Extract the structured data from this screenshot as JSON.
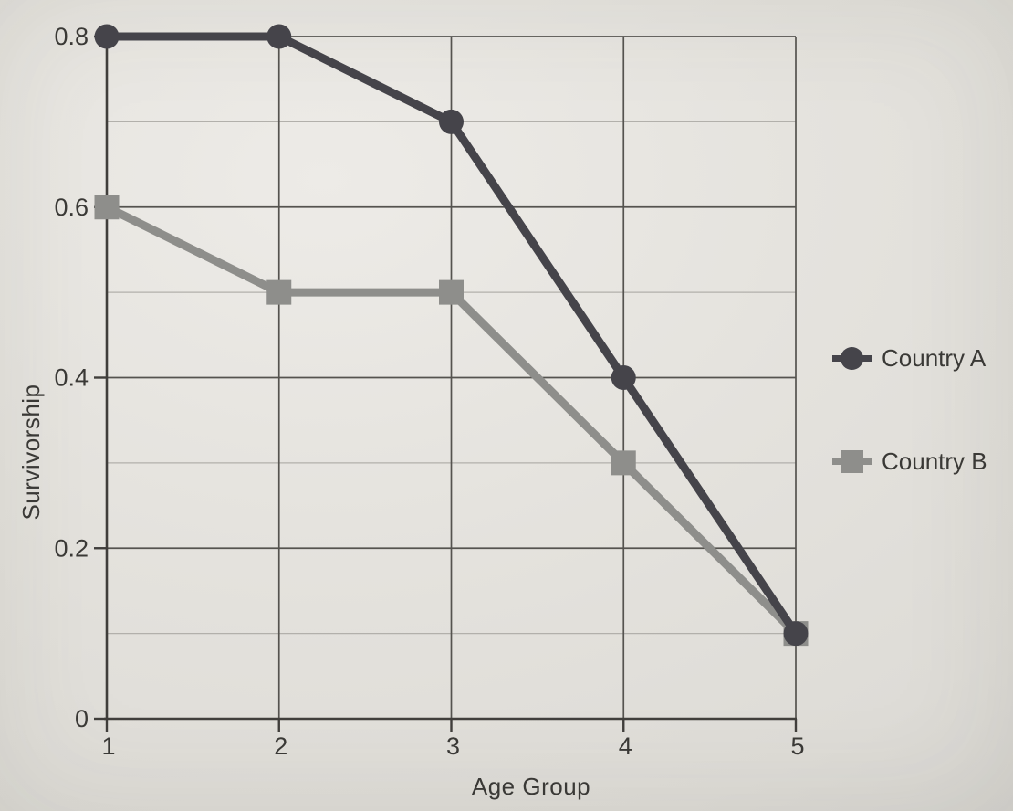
{
  "chart_data": {
    "type": "line",
    "title": "",
    "xlabel": "Age Group",
    "ylabel": "Survivorship",
    "x": [
      1,
      2,
      3,
      4,
      5
    ],
    "x_tick_labels": [
      "1",
      "2",
      "3",
      "4",
      "5"
    ],
    "y_major_ticks": [
      0,
      0.2,
      0.4,
      0.6,
      0.8
    ],
    "y_tick_labels": [
      "0",
      "0.2",
      "0.4",
      "0.6",
      "0.8"
    ],
    "y_minor_step": 0.1,
    "xlim": [
      1,
      5
    ],
    "ylim": [
      0,
      0.8
    ],
    "grid": true,
    "legend_position": "right",
    "series": [
      {
        "name": "Country A",
        "marker": "circle",
        "color": "#45444a",
        "values": [
          0.8,
          0.8,
          0.7,
          0.4,
          0.1
        ]
      },
      {
        "name": "Country B",
        "marker": "square",
        "color": "#8e8e8b",
        "values": [
          0.6,
          0.5,
          0.5,
          0.3,
          0.1
        ]
      }
    ]
  },
  "colors": {
    "paper": "#e4e2dd",
    "axis": "#403e3b",
    "grid_major": "#55534f",
    "grid_minor": "#b2b0ab",
    "text": "#3a3936"
  }
}
